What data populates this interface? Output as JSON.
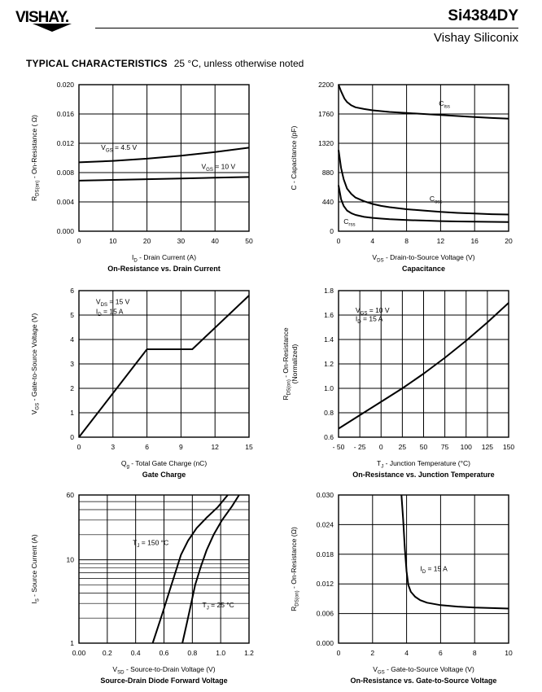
{
  "header": {
    "logo_text": "VISHAY.",
    "part_number": "Si4384DY",
    "company": "Vishay Siliconix"
  },
  "section": {
    "title": "TYPICAL CHARACTERISTICS",
    "note": "25 °C, unless otherwise noted"
  },
  "chart_data": [
    {
      "id": "rds-vs-id",
      "type": "line",
      "title": "On-Resistance vs. Drain Current",
      "xlabel": {
        "main": "I",
        "sub": "D",
        "rest": " - Drain Current (A)"
      },
      "ylabel": {
        "main": "R",
        "sub": "DS(on)",
        "rest": " - On-Resistance ( Ω)"
      },
      "xlim": [
        0,
        50
      ],
      "ylim": [
        0,
        0.02
      ],
      "xticks": [
        0,
        10,
        20,
        30,
        40,
        50
      ],
      "yticks": [
        0,
        0.004,
        0.008,
        0.012,
        0.016,
        0.02
      ],
      "xtick_labels": [
        "0",
        "10",
        "20",
        "30",
        "40",
        "50"
      ],
      "ytick_labels": [
        "0.000",
        "0.004",
        "0.008",
        "0.012",
        "0.016",
        "0.020"
      ],
      "grid_x": [
        0,
        10,
        20,
        30,
        40,
        50
      ],
      "grid_y": [
        0,
        0.004,
        0.008,
        0.012,
        0.016,
        0.02
      ],
      "series": [
        {
          "x": [
            0,
            10,
            20,
            30,
            40,
            50
          ],
          "y": [
            0.0094,
            0.0096,
            0.0099,
            0.0103,
            0.0108,
            0.0114
          ]
        },
        {
          "x": [
            0,
            10,
            20,
            30,
            40,
            50
          ],
          "y": [
            0.0069,
            0.007,
            0.0071,
            0.0072,
            0.0073,
            0.0074
          ]
        }
      ],
      "annotations": [
        {
          "main": "V",
          "sub": "GS",
          "rest": " = 4.5 V",
          "x": 6.5,
          "y": 0.0111
        },
        {
          "main": "V",
          "sub": "GS",
          "rest": " = 10 V",
          "x": 36,
          "y": 0.0085
        }
      ]
    },
    {
      "id": "capacitance",
      "type": "line",
      "title": "Capacitance",
      "xlabel": {
        "main": "V",
        "sub": "DS",
        "rest": " - Drain-to-Source Voltage (V)"
      },
      "ylabel": {
        "main": "C - Capacitance (pF)",
        "sub": "",
        "rest": ""
      },
      "xlim": [
        0,
        20
      ],
      "ylim": [
        0,
        2200
      ],
      "xticks": [
        0,
        4,
        8,
        12,
        16,
        20
      ],
      "yticks": [
        0,
        440,
        880,
        1320,
        1760,
        2200
      ],
      "xtick_labels": [
        "0",
        "4",
        "8",
        "12",
        "16",
        "20"
      ],
      "ytick_labels": [
        "0",
        "440",
        "880",
        "1320",
        "1760",
        "2200"
      ],
      "grid_x": [
        0,
        4,
        8,
        12,
        16,
        20
      ],
      "grid_y": [
        0,
        440,
        880,
        1320,
        1760,
        2200
      ],
      "series": [
        {
          "x": [
            0,
            0.3,
            0.7,
            1,
            1.5,
            2,
            3,
            4,
            6,
            8,
            10,
            12,
            14,
            16,
            18,
            20
          ],
          "y": [
            2200,
            2100,
            1990,
            1940,
            1890,
            1860,
            1835,
            1815,
            1790,
            1775,
            1760,
            1745,
            1730,
            1715,
            1700,
            1690
          ]
        },
        {
          "x": [
            0,
            0.3,
            0.6,
            1,
            1.5,
            2,
            3,
            4,
            5,
            6,
            8,
            10,
            12,
            14,
            16,
            18,
            20
          ],
          "y": [
            1220,
            950,
            780,
            640,
            560,
            505,
            450,
            410,
            380,
            360,
            330,
            310,
            290,
            275,
            265,
            255,
            250
          ]
        },
        {
          "x": [
            0,
            0.3,
            0.6,
            1,
            1.5,
            2,
            3,
            4,
            5,
            6,
            8,
            10,
            12,
            14,
            16,
            18,
            20
          ],
          "y": [
            690,
            480,
            380,
            310,
            270,
            245,
            215,
            200,
            190,
            180,
            168,
            160,
            152,
            147,
            143,
            140,
            138
          ]
        }
      ],
      "annotations": [
        {
          "main": "C",
          "sub": "iss",
          "rest": "",
          "x": 11.8,
          "y": 1880
        },
        {
          "main": "C",
          "sub": "oss",
          "rest": "",
          "x": 10.7,
          "y": 450
        },
        {
          "main": "C",
          "sub": "rss",
          "rest": "",
          "x": 0.6,
          "y": 110
        }
      ]
    },
    {
      "id": "gate-charge",
      "type": "line",
      "title": "Gate Charge",
      "xlabel": {
        "main": "Q",
        "sub": "g",
        "rest": " - Total Gate Charge (nC)"
      },
      "ylabel": {
        "main": "V",
        "sub": "GS",
        "rest": " - Gate-to-Source Voltage (V)"
      },
      "xlim": [
        0,
        15
      ],
      "ylim": [
        0,
        6
      ],
      "xticks": [
        0,
        3,
        6,
        9,
        12,
        15
      ],
      "yticks": [
        0,
        1,
        2,
        3,
        4,
        5,
        6
      ],
      "xtick_labels": [
        "0",
        "3",
        "6",
        "9",
        "12",
        "15"
      ],
      "ytick_labels": [
        "0",
        "1",
        "2",
        "3",
        "4",
        "5",
        "6"
      ],
      "grid_x": [
        0,
        3,
        6,
        9,
        12,
        15
      ],
      "grid_y": [
        0,
        1,
        2,
        3,
        4,
        5,
        6
      ],
      "series": [
        {
          "x": [
            0,
            6,
            10,
            15
          ],
          "y": [
            0,
            3.6,
            3.6,
            5.8
          ]
        }
      ],
      "annotations": [
        {
          "main": "V",
          "sub": "DS",
          "rest": " = 15 V",
          "x": 1.5,
          "y": 5.45
        },
        {
          "main": "I",
          "sub": "D",
          "rest": " = 15 A",
          "x": 1.5,
          "y": 5.05
        }
      ]
    },
    {
      "id": "rds-vs-temp",
      "type": "line",
      "title": "On-Resistance vs. Junction Temperature",
      "xlabel": {
        "main": "T",
        "sub": "J",
        "rest": " - Junction Temperature (°C)"
      },
      "ylabel": {
        "main": "R",
        "sub": "DS(on)",
        "rest": " - On-Resistance",
        "line2": "(Normalized)"
      },
      "xlim": [
        -50,
        150
      ],
      "ylim": [
        0.6,
        1.8
      ],
      "xticks": [
        -50,
        -25,
        0,
        25,
        50,
        75,
        100,
        125,
        150
      ],
      "yticks": [
        0.6,
        0.8,
        1.0,
        1.2,
        1.4,
        1.6,
        1.8
      ],
      "xtick_labels": [
        "- 50",
        "- 25",
        "0",
        "25",
        "50",
        "75",
        "100",
        "125",
        "150"
      ],
      "ytick_labels": [
        "0.6",
        "0.8",
        "1.0",
        "1.2",
        "1.4",
        "1.6",
        "1.8"
      ],
      "grid_x": [
        -50,
        -25,
        0,
        25,
        50,
        75,
        100,
        125,
        150
      ],
      "grid_y": [
        0.6,
        0.8,
        1.0,
        1.2,
        1.4,
        1.6,
        1.8
      ],
      "series": [
        {
          "x": [
            -50,
            -25,
            0,
            25,
            50,
            75,
            100,
            125,
            150
          ],
          "y": [
            0.67,
            0.78,
            0.89,
            1.0,
            1.12,
            1.25,
            1.39,
            1.54,
            1.7
          ]
        }
      ],
      "annotations": [
        {
          "main": "V",
          "sub": "GS",
          "rest": " = 10 V",
          "x": -30,
          "y": 1.62
        },
        {
          "main": "I",
          "sub": "D",
          "rest": " = 15 A",
          "x": -30,
          "y": 1.55
        }
      ]
    },
    {
      "id": "diode-forward",
      "type": "line",
      "title": "Source-Drain Diode Forward Voltage",
      "xlabel": {
        "main": "V",
        "sub": "SD",
        "rest": " - Source-to-Drain Voltage (V)"
      },
      "ylabel": {
        "main": "I",
        "sub": "S",
        "rest": " - Source Current (A)"
      },
      "xlim": [
        0,
        1.2
      ],
      "ylim": [
        1,
        60
      ],
      "log_y": true,
      "xticks": [
        0,
        0.2,
        0.4,
        0.6,
        0.8,
        1.0,
        1.2
      ],
      "yticks": [
        1,
        10,
        60
      ],
      "xtick_labels": [
        "0.00",
        "0.2",
        "0.4",
        "0.6",
        "0.8",
        "1.0",
        "1.2"
      ],
      "ytick_labels": [
        "1",
        "10",
        "60"
      ],
      "grid_x": [
        0,
        0.2,
        0.4,
        0.6,
        0.8,
        1.0,
        1.2
      ],
      "grid_y": [
        1,
        2,
        3,
        4,
        5,
        6,
        7,
        8,
        9,
        10,
        20,
        30,
        40,
        50,
        60
      ],
      "series": [
        {
          "x": [
            0.52,
            0.56,
            0.6,
            0.64,
            0.68,
            0.72,
            0.77,
            0.83,
            0.9,
            0.98,
            1.05
          ],
          "y": [
            1,
            1.6,
            2.6,
            4.3,
            7,
            11.5,
            17,
            24,
            32,
            43,
            60
          ]
        },
        {
          "x": [
            0.73,
            0.76,
            0.79,
            0.82,
            0.86,
            0.9,
            0.95,
            1.01,
            1.08,
            1.13
          ],
          "y": [
            1,
            1.7,
            2.9,
            5,
            8.3,
            13,
            20,
            30,
            44,
            60
          ]
        }
      ],
      "annotations": [
        {
          "main": "T",
          "sub": "J",
          "rest": " = 150 °C",
          "x": 0.38,
          "y": 15
        },
        {
          "main": "T",
          "sub": "J",
          "rest": " = 25 °C",
          "x": 0.87,
          "y": 2.7
        }
      ]
    },
    {
      "id": "rds-vs-vgs",
      "type": "line",
      "title": "On-Resistance vs. Gate-to-Source Voltage",
      "xlabel": {
        "main": "V",
        "sub": "GS",
        "rest": " - Gate-to-Source Voltage (V)"
      },
      "ylabel": {
        "main": "R",
        "sub": "DS(on)",
        "rest": " - On-Resistance (Ω)"
      },
      "xlim": [
        0,
        10
      ],
      "ylim": [
        0,
        0.03
      ],
      "xticks": [
        0,
        2,
        4,
        6,
        8,
        10
      ],
      "yticks": [
        0,
        0.006,
        0.012,
        0.018,
        0.024,
        0.03
      ],
      "xtick_labels": [
        "0",
        "2",
        "4",
        "6",
        "8",
        "10"
      ],
      "ytick_labels": [
        "0.000",
        "0.006",
        "0.012",
        "0.018",
        "0.024",
        "0.030"
      ],
      "grid_x": [
        0,
        2,
        4,
        6,
        8,
        10
      ],
      "grid_y": [
        0,
        0.006,
        0.012,
        0.018,
        0.024,
        0.03
      ],
      "series": [
        {
          "x": [
            3.7,
            3.8,
            3.9,
            4.0,
            4.1,
            4.25,
            4.5,
            4.8,
            5.2,
            6,
            7,
            8,
            9,
            10
          ],
          "y": [
            0.03,
            0.025,
            0.019,
            0.0145,
            0.0118,
            0.0104,
            0.0094,
            0.0087,
            0.0082,
            0.0077,
            0.0074,
            0.0072,
            0.0071,
            0.007
          ]
        }
      ],
      "annotations": [
        {
          "main": "I",
          "sub": "D",
          "rest": " = 15 A",
          "x": 4.8,
          "y": 0.0146
        }
      ]
    }
  ]
}
